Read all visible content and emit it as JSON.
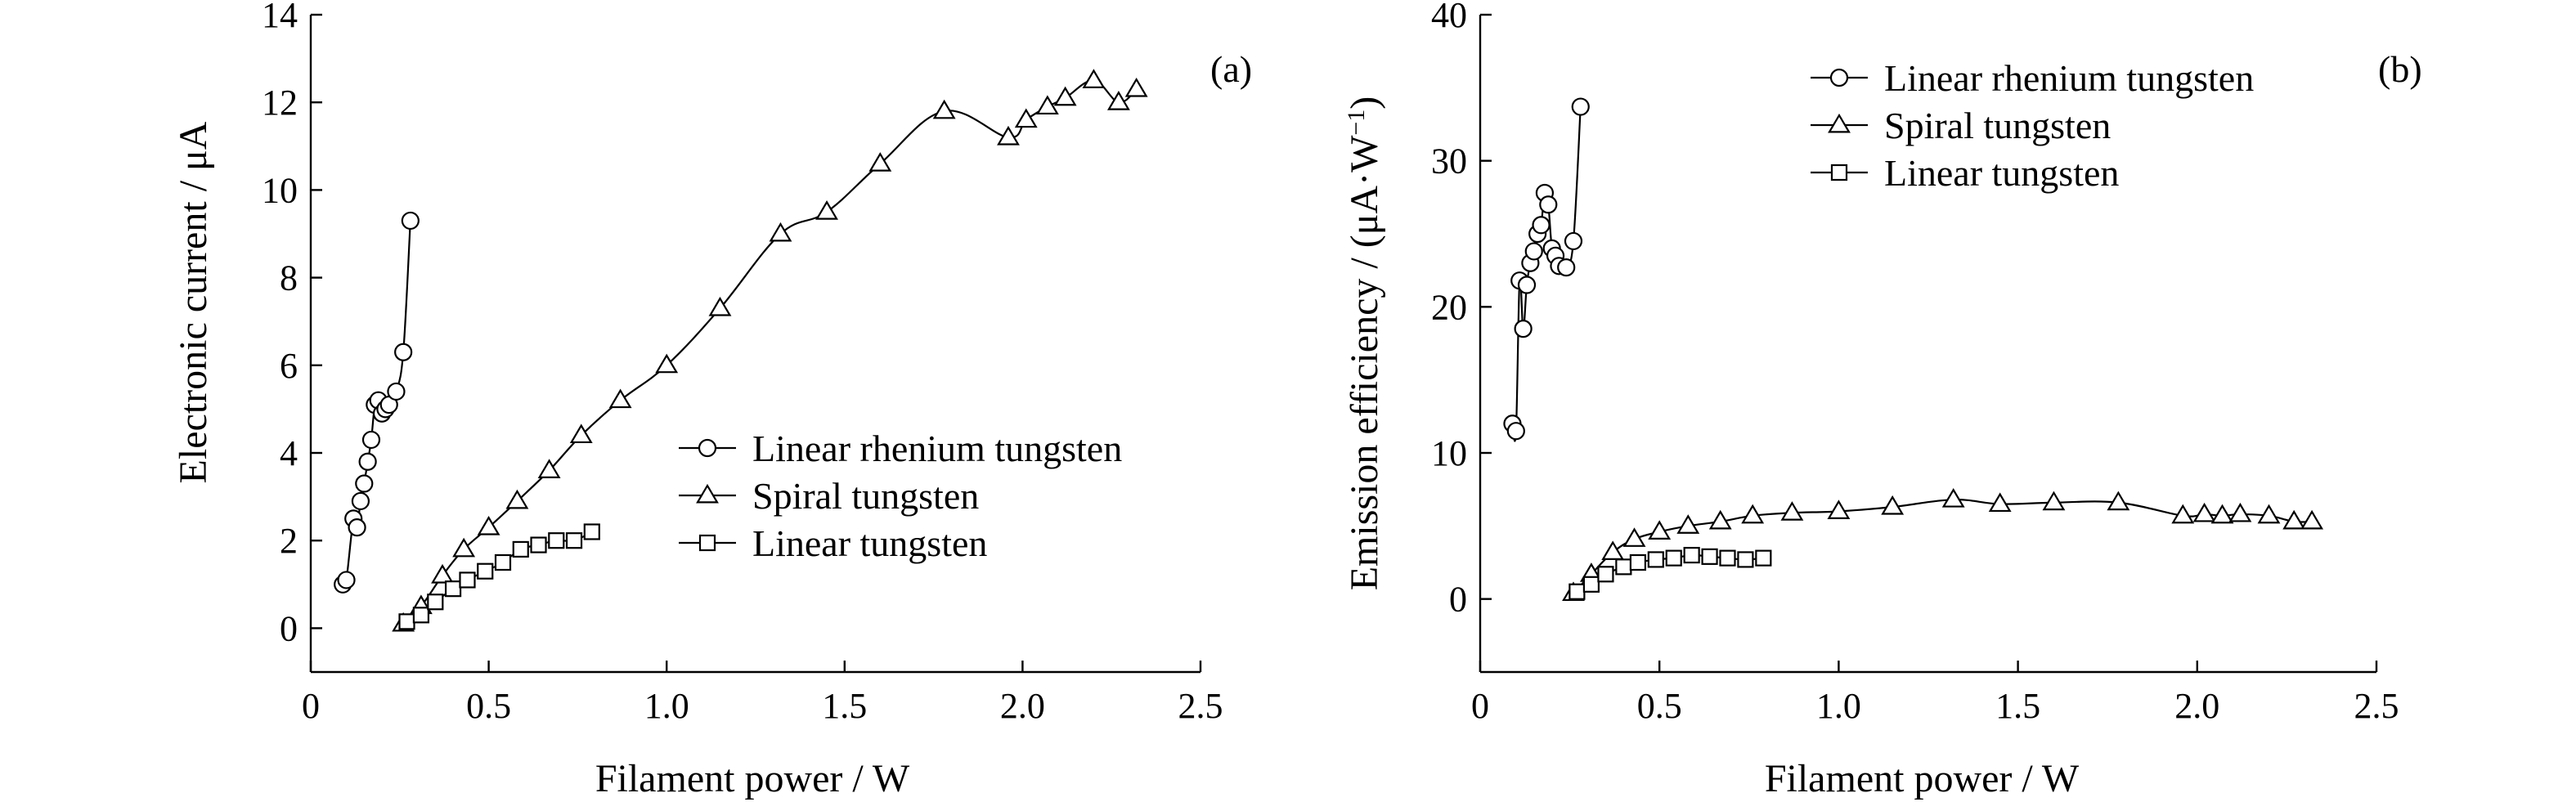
{
  "chart_data": [
    {
      "type": "line",
      "panel_label": "(a)",
      "xlabel": "Filament power / W",
      "ylabel": "Electronic current / μA",
      "xlim": [
        0,
        2.5
      ],
      "ylim": [
        -1,
        14
      ],
      "xticks": [
        0,
        0.5,
        1.0,
        1.5,
        2.0,
        2.5
      ],
      "xtick_labels": [
        "0",
        "0.5",
        "1.0",
        "1.5",
        "2.0",
        "2.5"
      ],
      "yticks": [
        0,
        2,
        4,
        6,
        8,
        10,
        12,
        14
      ],
      "ytick_labels": [
        "0",
        "2",
        "4",
        "6",
        "8",
        "10",
        "12",
        "14"
      ],
      "grid": false,
      "legend_position": "center-right",
      "series": [
        {
          "name": "Linear rhenium tungsten",
          "marker": "circle",
          "x": [
            0.09,
            0.1,
            0.12,
            0.13,
            0.14,
            0.15,
            0.16,
            0.17,
            0.18,
            0.19,
            0.2,
            0.21,
            0.22,
            0.24,
            0.26,
            0.28
          ],
          "y": [
            1.0,
            1.1,
            2.5,
            2.3,
            2.9,
            3.3,
            3.8,
            4.3,
            5.1,
            5.2,
            4.9,
            5.0,
            5.1,
            5.4,
            6.3,
            9.3
          ]
        },
        {
          "name": "Spiral tungsten",
          "marker": "triangle",
          "x": [
            0.26,
            0.31,
            0.37,
            0.43,
            0.5,
            0.58,
            0.67,
            0.76,
            0.87,
            1.0,
            1.15,
            1.32,
            1.45,
            1.6,
            1.78,
            1.96,
            2.01,
            2.07,
            2.12,
            2.2,
            2.27,
            2.32
          ],
          "y": [
            0.1,
            0.5,
            1.2,
            1.8,
            2.3,
            2.9,
            3.6,
            4.4,
            5.2,
            6.0,
            7.3,
            9.0,
            9.5,
            10.6,
            11.8,
            11.2,
            11.6,
            11.9,
            12.1,
            12.5,
            12.0,
            12.3
          ]
        },
        {
          "name": "Linear tungsten",
          "marker": "square",
          "x": [
            0.27,
            0.31,
            0.35,
            0.4,
            0.44,
            0.49,
            0.54,
            0.59,
            0.64,
            0.69,
            0.74,
            0.79
          ],
          "y": [
            0.15,
            0.3,
            0.6,
            0.9,
            1.1,
            1.3,
            1.5,
            1.8,
            1.9,
            2.0,
            2.0,
            2.2
          ]
        }
      ]
    },
    {
      "type": "line",
      "panel_label": "(b)",
      "xlabel": "Filament power / W",
      "ylabel": "Emission efficiency / (μA·W",
      "ylabel_sup": "−1",
      "ylabel_end": ")",
      "xlim": [
        0,
        2.5
      ],
      "ylim": [
        -5,
        40
      ],
      "xticks": [
        0,
        0.5,
        1.0,
        1.5,
        2.0,
        2.5
      ],
      "xtick_labels": [
        "0",
        "0.5",
        "1.0",
        "1.5",
        "2.0",
        "2.5"
      ],
      "yticks": [
        0,
        10,
        20,
        30,
        40
      ],
      "ytick_labels": [
        "0",
        "10",
        "20",
        "30",
        "40"
      ],
      "grid": false,
      "legend_position": "top-center",
      "series": [
        {
          "name": "Linear rhenium tungsten",
          "marker": "circle",
          "x": [
            0.09,
            0.1,
            0.11,
            0.12,
            0.13,
            0.14,
            0.15,
            0.16,
            0.17,
            0.18,
            0.19,
            0.2,
            0.21,
            0.22,
            0.24,
            0.26,
            0.28
          ],
          "y": [
            12.0,
            11.5,
            21.8,
            18.5,
            21.5,
            23.0,
            23.8,
            25.0,
            25.6,
            27.8,
            27.0,
            24.0,
            23.5,
            22.8,
            22.7,
            24.5,
            33.7
          ]
        },
        {
          "name": "Spiral tungsten",
          "marker": "triangle",
          "x": [
            0.26,
            0.31,
            0.37,
            0.43,
            0.5,
            0.58,
            0.67,
            0.76,
            0.87,
            1.0,
            1.15,
            1.32,
            1.45,
            1.6,
            1.78,
            1.96,
            2.02,
            2.07,
            2.12,
            2.2,
            2.27,
            2.32
          ],
          "y": [
            0.4,
            1.7,
            3.2,
            4.1,
            4.6,
            5.0,
            5.3,
            5.7,
            5.9,
            6.0,
            6.3,
            6.8,
            6.5,
            6.6,
            6.6,
            5.7,
            5.8,
            5.7,
            5.8,
            5.7,
            5.3,
            5.3
          ]
        },
        {
          "name": "Linear tungsten",
          "marker": "square",
          "x": [
            0.27,
            0.31,
            0.35,
            0.4,
            0.44,
            0.49,
            0.54,
            0.59,
            0.64,
            0.69,
            0.74,
            0.79
          ],
          "y": [
            0.5,
            1.0,
            1.7,
            2.2,
            2.5,
            2.7,
            2.8,
            3.0,
            2.9,
            2.8,
            2.7,
            2.8
          ]
        }
      ]
    }
  ]
}
